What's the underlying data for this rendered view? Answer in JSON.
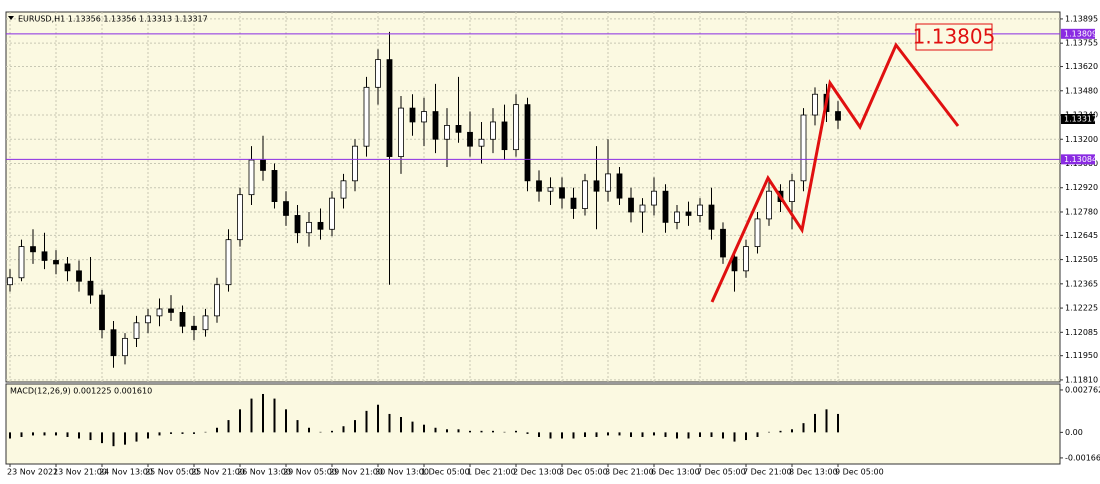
{
  "chart_data": [
    {
      "type": "candlestick",
      "title": "EURUSD,H1  1.13356 1.13356 1.13313 1.13317",
      "categories": [
        "23 Nov 2021",
        null,
        null,
        null,
        "23 Nov 21:00",
        null,
        null,
        null,
        "24 Nov 13:00",
        null,
        null,
        null,
        "25 Nov 05:00",
        null,
        null,
        null,
        "25 Nov 21:00",
        null,
        null,
        null,
        "26 Nov 13:00",
        null,
        null,
        null,
        "29 Nov 05:00",
        null,
        null,
        null,
        "29 Nov 21:00",
        null,
        null,
        null,
        "30 Nov 13:00",
        null,
        null,
        null,
        "1 Dec 05:00",
        null,
        null,
        null,
        "1 Dec 21:00",
        null,
        null,
        null,
        "2 Dec 13:00",
        null,
        null,
        null,
        "3 Dec 05:00",
        null,
        null,
        null,
        "3 Dec 21:00",
        null,
        null,
        null,
        "6 Dec 13:00",
        null,
        null,
        null,
        "7 Dec 05:00",
        null,
        null,
        null,
        "7 Dec 21:00",
        null,
        null,
        null,
        "8 Dec 13:00",
        null,
        null,
        null,
        "9 Dec 05:00"
      ],
      "open": [
        1.1236,
        1.124,
        1.1258,
        1.1255,
        1.125,
        1.1248,
        1.1244,
        1.1238,
        1.123,
        1.121,
        1.1195,
        1.1205,
        1.1214,
        1.1218,
        1.1222,
        1.122,
        1.1212,
        1.121,
        1.1218,
        1.1236,
        1.1262,
        1.1288,
        1.1308,
        1.1302,
        1.1284,
        1.1276,
        1.1266,
        1.1272,
        1.1268,
        1.1286,
        1.1296,
        1.1316,
        1.135,
        1.1366,
        1.131,
        1.1338,
        1.133,
        1.1336,
        1.132,
        1.1328,
        1.1324,
        1.1316,
        1.132,
        1.133,
        1.1314,
        1.134,
        1.1296,
        1.129,
        1.1292,
        1.1286,
        1.128,
        1.1296,
        1.129,
        1.13,
        1.1286,
        1.1278,
        1.1282,
        1.129,
        1.1272,
        1.1278,
        1.1276,
        1.1282,
        1.1268,
        1.1252,
        1.1244,
        1.1258,
        1.1274,
        1.129,
        1.1284,
        1.1296,
        1.1334,
        1.1346,
        1.1336
      ],
      "high": [
        1.1245,
        1.1262,
        1.1268,
        1.1266,
        1.1256,
        1.1252,
        1.125,
        1.1252,
        1.1233,
        1.1215,
        1.1208,
        1.1218,
        1.1222,
        1.1228,
        1.123,
        1.1224,
        1.1218,
        1.1222,
        1.124,
        1.1268,
        1.1292,
        1.1316,
        1.1322,
        1.1306,
        1.129,
        1.1282,
        1.1278,
        1.128,
        1.129,
        1.13,
        1.132,
        1.1356,
        1.1372,
        1.1382,
        1.1345,
        1.1346,
        1.1344,
        1.1352,
        1.1338,
        1.1356,
        1.1336,
        1.133,
        1.1338,
        1.134,
        1.1346,
        1.1344,
        1.1302,
        1.1298,
        1.1298,
        1.1292,
        1.13,
        1.1316,
        1.132,
        1.1304,
        1.1292,
        1.1286,
        1.1298,
        1.1294,
        1.1282,
        1.1284,
        1.1286,
        1.1292,
        1.1272,
        1.1256,
        1.1262,
        1.1278,
        1.1296,
        1.1294,
        1.13,
        1.1338,
        1.135,
        1.1352,
        1.1342
      ],
      "low": [
        1.1232,
        1.1238,
        1.1248,
        1.1245,
        1.1242,
        1.1238,
        1.1232,
        1.1225,
        1.1205,
        1.1188,
        1.119,
        1.12,
        1.1208,
        1.1212,
        1.1215,
        1.1208,
        1.1204,
        1.1206,
        1.1214,
        1.1232,
        1.1258,
        1.1282,
        1.1296,
        1.128,
        1.127,
        1.126,
        1.1258,
        1.1262,
        1.1264,
        1.128,
        1.129,
        1.131,
        1.134,
        1.1236,
        1.13,
        1.1322,
        1.1316,
        1.1312,
        1.1304,
        1.1318,
        1.131,
        1.1306,
        1.1312,
        1.1308,
        1.131,
        1.129,
        1.1284,
        1.1282,
        1.128,
        1.1274,
        1.1276,
        1.1268,
        1.1284,
        1.1282,
        1.1272,
        1.1266,
        1.1276,
        1.1266,
        1.1268,
        1.127,
        1.1272,
        1.1262,
        1.1248,
        1.1232,
        1.124,
        1.1254,
        1.127,
        1.1278,
        1.1268,
        1.129,
        1.1328,
        1.133,
        1.1326
      ],
      "close": [
        1.124,
        1.1258,
        1.1255,
        1.125,
        1.1248,
        1.1244,
        1.1238,
        1.123,
        1.121,
        1.1195,
        1.1205,
        1.1214,
        1.1218,
        1.1222,
        1.122,
        1.1212,
        1.121,
        1.1218,
        1.1236,
        1.1262,
        1.1288,
        1.1308,
        1.1302,
        1.1284,
        1.1276,
        1.1266,
        1.1272,
        1.1268,
        1.1286,
        1.1296,
        1.1316,
        1.135,
        1.1366,
        1.131,
        1.1338,
        1.133,
        1.1336,
        1.132,
        1.1328,
        1.1324,
        1.1316,
        1.132,
        1.133,
        1.1314,
        1.134,
        1.1296,
        1.129,
        1.1292,
        1.1286,
        1.128,
        1.1296,
        1.129,
        1.13,
        1.1286,
        1.1278,
        1.1282,
        1.129,
        1.1272,
        1.1278,
        1.1276,
        1.1282,
        1.1268,
        1.1252,
        1.1244,
        1.1258,
        1.1274,
        1.129,
        1.1284,
        1.1296,
        1.1334,
        1.1346,
        1.1336,
        1.1331
      ],
      "ylim": [
        1.11798,
        1.13935
      ],
      "yticks": [
        {
          "value": 1.13895,
          "label": "1.13895"
        },
        {
          "value": 1.13755,
          "label": "1.13755"
        },
        {
          "value": 1.1362,
          "label": "1.13620"
        },
        {
          "value": 1.1348,
          "label": "1.13480"
        },
        {
          "value": 1.1334,
          "label": "1.13340"
        },
        {
          "value": 1.132,
          "label": "1.13200"
        },
        {
          "value": 1.1306,
          "label": "1.13060"
        },
        {
          "value": 1.1292,
          "label": "1.12920"
        },
        {
          "value": 1.1278,
          "label": "1.12780"
        },
        {
          "value": 1.12645,
          "label": "1.12645"
        },
        {
          "value": 1.12505,
          "label": "1.12505"
        },
        {
          "value": 1.12365,
          "label": "1.12365"
        },
        {
          "value": 1.12225,
          "label": "1.12225"
        },
        {
          "value": 1.12085,
          "label": "1.12085"
        },
        {
          "value": 1.1195,
          "label": "1.11950"
        },
        {
          "value": 1.1181,
          "label": "1.11810"
        }
      ],
      "hlines": [
        {
          "value": 1.13809,
          "color": "#8a2be2"
        },
        {
          "value": 1.13084,
          "color": "#8a2be2"
        }
      ],
      "price_label": 1.13317,
      "annotation": "1.13805",
      "grid": true
    },
    {
      "type": "bar",
      "title": "MACD(12,26,9) 0.001225 0.001610",
      "values": [
        -0.0004,
        -0.0003,
        -0.0002,
        -0.0002,
        -0.0002,
        -0.0003,
        -0.0004,
        -0.0005,
        -0.0007,
        -0.0009,
        -0.0008,
        -0.0006,
        -0.0004,
        -0.0002,
        -0.0001,
        -0.0001,
        -0.0001,
        0.0,
        0.0003,
        0.0008,
        0.0015,
        0.0022,
        0.0025,
        0.0022,
        0.0015,
        0.0008,
        0.0003,
        0.0,
        0.0001,
        0.0004,
        0.0008,
        0.0014,
        0.0018,
        0.0012,
        0.001,
        0.0007,
        0.0005,
        0.0003,
        0.0002,
        0.0002,
        0.0001,
        0.0001,
        0.0001,
        0.0,
        0.0001,
        -0.0001,
        -0.0003,
        -0.0004,
        -0.0004,
        -0.0004,
        -0.0003,
        -0.0003,
        -0.0002,
        -0.0002,
        -0.0003,
        -0.0003,
        -0.0002,
        -0.0003,
        -0.0004,
        -0.0004,
        -0.0003,
        -0.0003,
        -0.0004,
        -0.0006,
        -0.0005,
        -0.0003,
        0.0,
        0.0001,
        0.0002,
        0.0006,
        0.0012,
        0.0015,
        0.0012
      ],
      "ylim": [
        -0.00206,
        0.00315
      ],
      "yticks": [
        0.002762,
        {
          "value": 0,
          "label": "0.00"
        },
        -0.001664
      ],
      "color": "#000000"
    }
  ]
}
